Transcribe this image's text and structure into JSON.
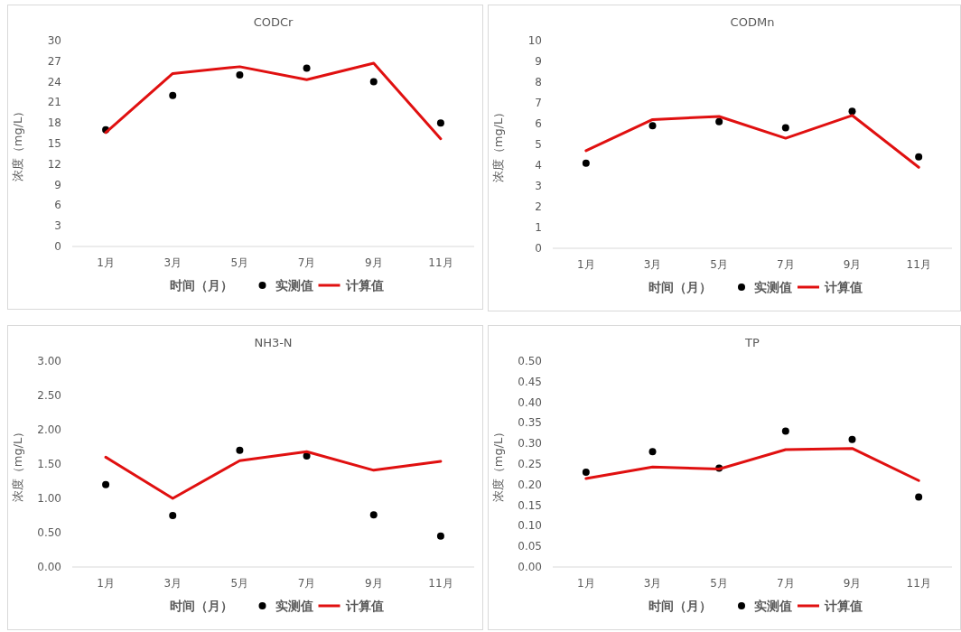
{
  "chart_data": [
    {
      "type": "line",
      "title": "CODCr",
      "xlabel": "时间（月）",
      "ylabel": "浓度（mg/L）",
      "categories": [
        "1月",
        "3月",
        "5月",
        "7月",
        "9月",
        "11月"
      ],
      "legend": "bottom",
      "ylim": [
        0,
        30
      ],
      "yticks": [
        0,
        3,
        6,
        9,
        12,
        15,
        18,
        21,
        24,
        27,
        30
      ],
      "series": [
        {
          "name": "实测值",
          "type": "scatter",
          "marker": "circle",
          "color": "#000000",
          "values": [
            17,
            22,
            25,
            26,
            24,
            18
          ]
        },
        {
          "name": "计算值",
          "type": "line",
          "color": "#e01010",
          "values": [
            16.6,
            25.2,
            26.2,
            24.3,
            26.7,
            15.7
          ]
        }
      ]
    },
    {
      "type": "line",
      "title": "CODMn",
      "xlabel": "时间（月）",
      "ylabel": "浓度（mg/L）",
      "categories": [
        "1月",
        "3月",
        "5月",
        "7月",
        "9月",
        "11月"
      ],
      "legend": "bottom",
      "ylim": [
        0,
        10
      ],
      "yticks": [
        0,
        1,
        2,
        3,
        4,
        5,
        6,
        7,
        8,
        9,
        10
      ],
      "series": [
        {
          "name": "实测值",
          "type": "scatter",
          "marker": "circle",
          "color": "#000000",
          "values": [
            4.1,
            5.9,
            6.1,
            5.8,
            6.6,
            4.4
          ]
        },
        {
          "name": "计算值",
          "type": "line",
          "color": "#e01010",
          "values": [
            4.7,
            6.2,
            6.35,
            5.3,
            6.4,
            3.9
          ]
        }
      ]
    },
    {
      "type": "line",
      "title": "NH3-N",
      "xlabel": "时间（月）",
      "ylabel": "浓度（mg/L）",
      "categories": [
        "1月",
        "3月",
        "5月",
        "7月",
        "9月",
        "11月"
      ],
      "legend": "bottom",
      "ylim": [
        0,
        3
      ],
      "yticks": [
        {
          "value": 0,
          "label": "0.00"
        },
        {
          "value": 0.5,
          "label": "0.50"
        },
        {
          "value": 1,
          "label": "1.00"
        },
        {
          "value": 1.5,
          "label": "1.50"
        },
        {
          "value": 2,
          "label": "2.00"
        },
        {
          "value": 2.5,
          "label": "2.50"
        },
        {
          "value": 3,
          "label": "3.00"
        }
      ],
      "series": [
        {
          "name": "实测值",
          "type": "scatter",
          "marker": "circle",
          "color": "#000000",
          "values": [
            1.2,
            0.75,
            1.7,
            1.62,
            0.76,
            0.45
          ]
        },
        {
          "name": "计算值",
          "type": "line",
          "color": "#e01010",
          "values": [
            1.6,
            1.0,
            1.55,
            1.68,
            1.41,
            1.54
          ]
        }
      ]
    },
    {
      "type": "line",
      "title": "TP",
      "xlabel": "时间（月）",
      "ylabel": "浓度（mg/L）",
      "categories": [
        "1月",
        "3月",
        "5月",
        "7月",
        "9月",
        "11月"
      ],
      "legend": "bottom",
      "ylim": [
        0,
        0.5
      ],
      "yticks": [
        {
          "value": 0,
          "label": "0.00"
        },
        {
          "value": 0.05,
          "label": "0.05"
        },
        {
          "value": 0.1,
          "label": "0.10"
        },
        {
          "value": 0.15,
          "label": "0.15"
        },
        {
          "value": 0.2,
          "label": "0.20"
        },
        {
          "value": 0.25,
          "label": "0.25"
        },
        {
          "value": 0.3,
          "label": "0.30"
        },
        {
          "value": 0.35,
          "label": "0.35"
        },
        {
          "value": 0.4,
          "label": "0.40"
        },
        {
          "value": 0.45,
          "label": "0.45"
        },
        {
          "value": 0.5,
          "label": "0.50"
        }
      ],
      "series": [
        {
          "name": "实测值",
          "type": "scatter",
          "marker": "circle",
          "color": "#000000",
          "values": [
            0.23,
            0.28,
            0.24,
            0.33,
            0.31,
            0.17
          ]
        },
        {
          "name": "计算值",
          "type": "line",
          "color": "#e01010",
          "values": [
            0.215,
            0.243,
            0.238,
            0.285,
            0.288,
            0.21
          ]
        }
      ]
    }
  ]
}
